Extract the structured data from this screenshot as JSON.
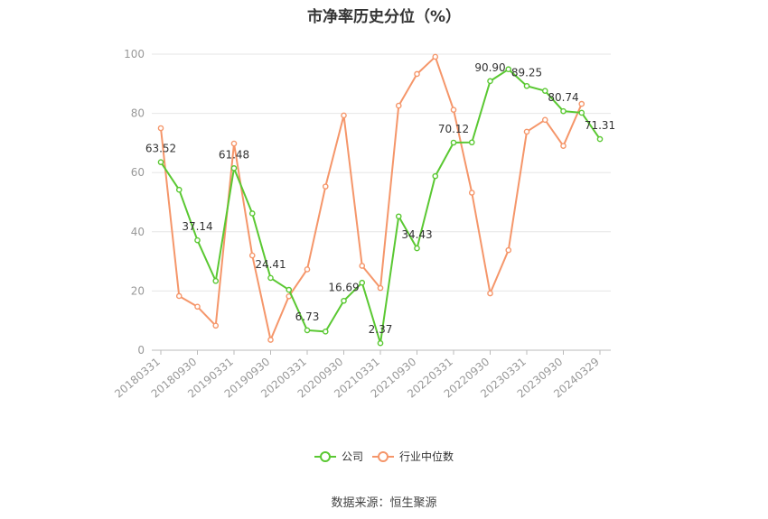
{
  "chart_data": {
    "type": "line",
    "title": "市净率历史分位（%）",
    "source": "数据来源：恒生聚源",
    "ylim": [
      0,
      100
    ],
    "y_ticks": [
      0,
      20,
      40,
      60,
      80,
      100
    ],
    "x_tick_labels": [
      "20180331",
      "20180930",
      "20190331",
      "20190930",
      "20200331",
      "20200930",
      "20210331",
      "20210930",
      "20220331",
      "20220930",
      "20230331",
      "20230930",
      "20240329"
    ],
    "grid": true,
    "legend_position": "bottom-center",
    "x": [
      "20180331",
      "20180630",
      "20180930",
      "20181231",
      "20190331",
      "20190630",
      "20190930",
      "20191231",
      "20200331",
      "20200630",
      "20200930",
      "20201231",
      "20210331",
      "20210630",
      "20210930",
      "20211231",
      "20220331",
      "20220630",
      "20220930",
      "20221230",
      "20230331",
      "20230630",
      "20230930",
      "20231229",
      "20240329"
    ],
    "series": [
      {
        "name": "公司",
        "color": "#5ac832",
        "values": [
          63.52,
          54.2,
          37.14,
          23.4,
          61.48,
          46.2,
          24.41,
          20.4,
          6.73,
          6.3,
          16.69,
          22.8,
          2.37,
          45.2,
          34.43,
          58.8,
          70.12,
          70.2,
          90.9,
          94.9,
          89.25,
          87.6,
          80.74,
          80.2,
          71.31
        ],
        "labels": {
          "0": "63.52",
          "2": "37.14",
          "4": "61.48",
          "6": "24.41",
          "8": "6.73",
          "10": "16.69",
          "12": "2.37",
          "14": "34.43",
          "16": "70.12",
          "18": "90.90",
          "20": "89.25",
          "22": "80.74",
          "24": "71.31"
        }
      },
      {
        "name": "行业中位数",
        "color": "#f5966a",
        "values": [
          75.0,
          18.3,
          14.7,
          8.3,
          69.8,
          32.0,
          3.5,
          18.2,
          27.3,
          55.3,
          79.3,
          28.5,
          21.0,
          82.6,
          93.3,
          99.1,
          81.2,
          53.2,
          19.2,
          33.8,
          73.8,
          77.8,
          69.0,
          83.2,
          null
        ]
      }
    ]
  }
}
